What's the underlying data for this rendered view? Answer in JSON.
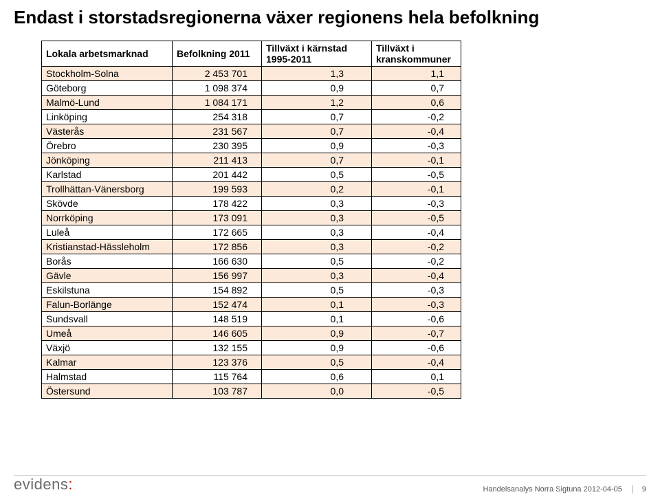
{
  "title": "Endast i storstadsregionerna växer regionens hela befolkning",
  "table": {
    "columns": [
      "Lokala arbetsmarknad",
      "Befolkning 2011",
      "Tillväxt i kärnstad 1995-2011",
      "Tillväxt i kranskommuner"
    ],
    "rows": [
      [
        "Stockholm-Solna",
        "2 453 701",
        "1,3",
        "1,1"
      ],
      [
        "Göteborg",
        "1 098 374",
        "0,9",
        "0,7"
      ],
      [
        "Malmö-Lund",
        "1 084 171",
        "1,2",
        "0,6"
      ],
      [
        "Linköping",
        "254 318",
        "0,7",
        "-0,2"
      ],
      [
        "Västerås",
        "231 567",
        "0,7",
        "-0,4"
      ],
      [
        "Örebro",
        "230 395",
        "0,9",
        "-0,3"
      ],
      [
        "Jönköping",
        "211 413",
        "0,7",
        "-0,1"
      ],
      [
        "Karlstad",
        "201 442",
        "0,5",
        "-0,5"
      ],
      [
        "Trollhättan-Vänersborg",
        "199 593",
        "0,2",
        "-0,1"
      ],
      [
        "Skövde",
        "178 422",
        "0,3",
        "-0,3"
      ],
      [
        "Norrköping",
        "173 091",
        "0,3",
        "-0,5"
      ],
      [
        "Luleå",
        "172 665",
        "0,3",
        "-0,4"
      ],
      [
        "Kristianstad-Hässleholm",
        "172 856",
        "0,3",
        "-0,2"
      ],
      [
        "Borås",
        "166 630",
        "0,5",
        "-0,2"
      ],
      [
        "Gävle",
        "156 997",
        "0,3",
        "-0,4"
      ],
      [
        "Eskilstuna",
        "154 892",
        "0,5",
        "-0,3"
      ],
      [
        "Falun-Borlänge",
        "152 474",
        "0,1",
        "-0,3"
      ],
      [
        "Sundsvall",
        "148 519",
        "0,1",
        "-0,6"
      ],
      [
        "Umeå",
        "146 605",
        "0,9",
        "-0,7"
      ],
      [
        "Växjö",
        "132 155",
        "0,9",
        "-0,6"
      ],
      [
        "Kalmar",
        "123 376",
        "0,5",
        "-0,4"
      ],
      [
        "Halmstad",
        "115 764",
        "0,6",
        "0,1"
      ],
      [
        "Östersund",
        "103 787",
        "0,0",
        "-0,5"
      ]
    ],
    "header_bg": "#ffffff",
    "row_even_bg": "#fde9d9",
    "row_odd_bg": "#ffffff",
    "border_color": "#000000",
    "font_size": 14
  },
  "footer": {
    "logo_text": "evidens",
    "logo_dot": ":",
    "note": "Handelsanalys Norra Sigtuna 2012-04-05",
    "page_number": "9"
  }
}
